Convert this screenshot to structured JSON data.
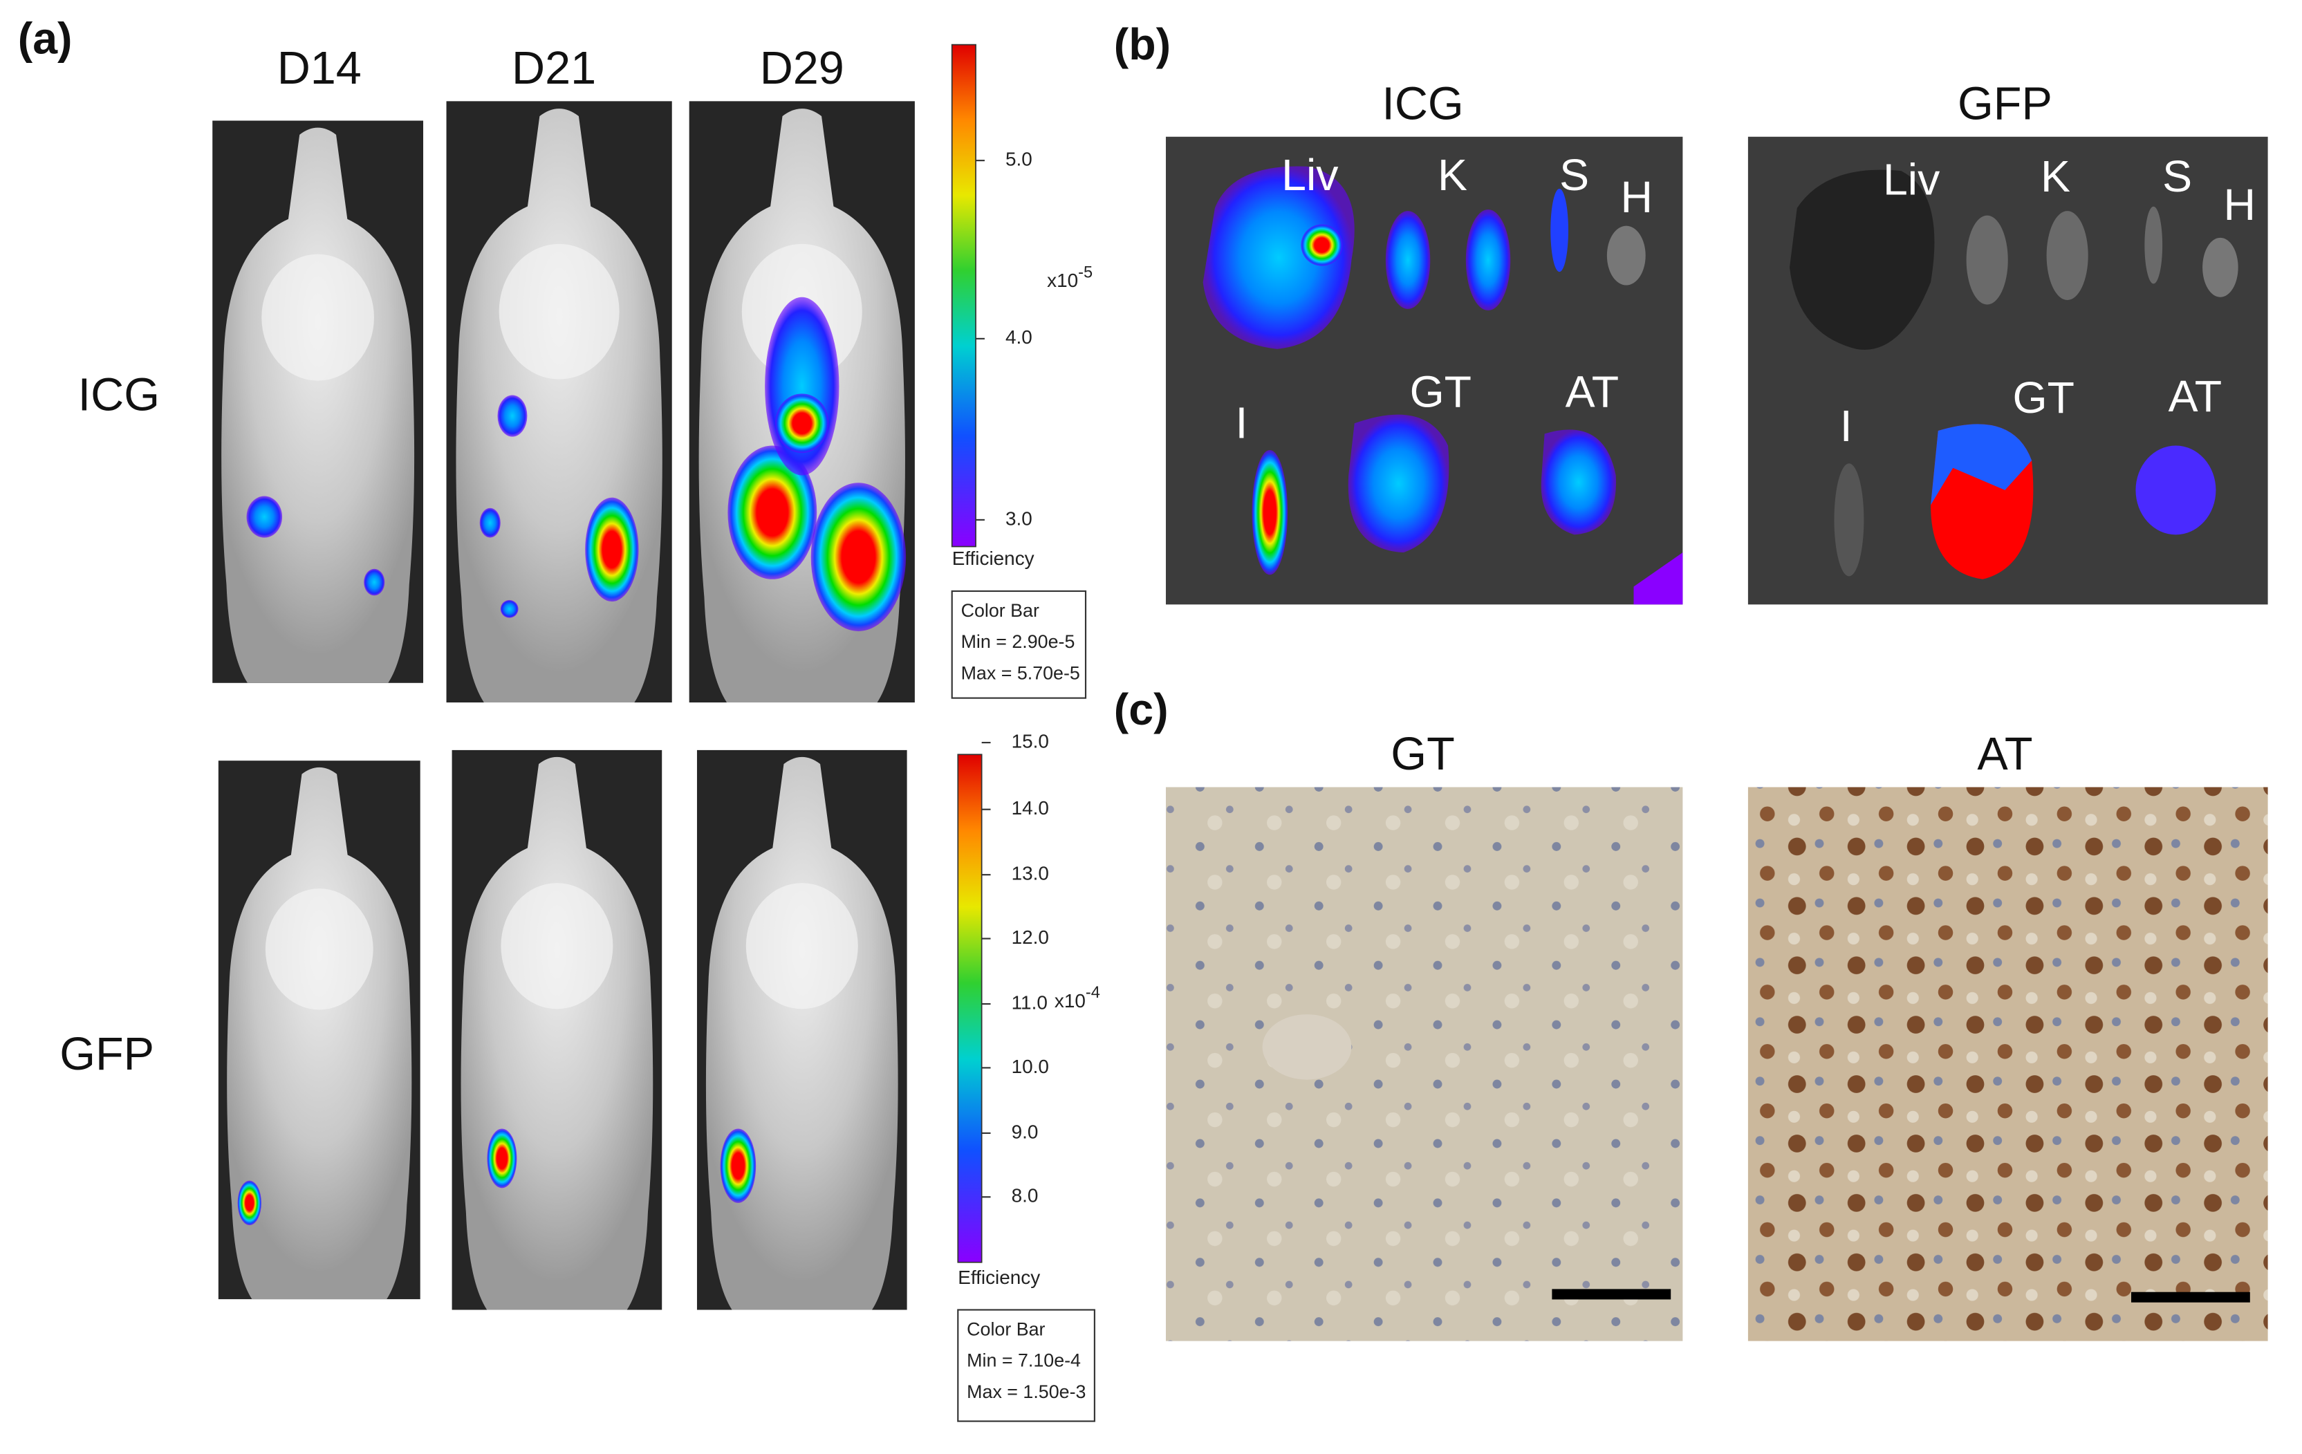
{
  "panel_a": {
    "label": "(a)",
    "columns": [
      "D14",
      "D21",
      "D29"
    ],
    "rows": [
      "ICG",
      "GFP"
    ],
    "colorbars": [
      {
        "ticks": [
          "5.0",
          "4.0",
          "3.0"
        ],
        "scale": "x10",
        "power": "-5",
        "unit": "Efficiency",
        "info": [
          "Color Bar",
          "Min = 2.90e-5",
          "Max = 5.70e-5"
        ]
      },
      {
        "ticks": [
          "15.0",
          "14.0",
          "13.0",
          "12.0",
          "11.0",
          "10.0",
          "9.0",
          "8.0"
        ],
        "scale": "x10",
        "power": "-4",
        "unit": "Efficiency",
        "info": [
          "Color Bar",
          "Min = 7.10e-4",
          "Max = 1.50e-3"
        ]
      }
    ]
  },
  "panel_b": {
    "label": "(b)",
    "images": [
      {
        "title": "ICG",
        "organs": [
          "Liv",
          "K",
          "S",
          "H",
          "I",
          "GT",
          "AT"
        ]
      },
      {
        "title": "GFP",
        "organs": [
          "Liv",
          "K",
          "S",
          "H",
          "I",
          "GT",
          "AT"
        ]
      }
    ]
  },
  "panel_c": {
    "label": "(c)",
    "images": [
      {
        "title": "GT"
      },
      {
        "title": "AT"
      }
    ]
  }
}
